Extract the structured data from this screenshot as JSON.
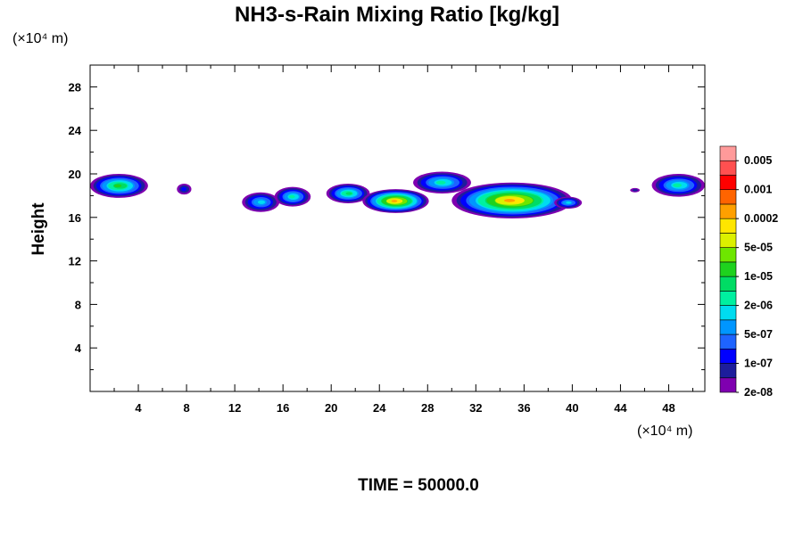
{
  "chart_data": {
    "type": "heatmap",
    "title": "NH3-s-Rain Mixing Ratio [kg/kg]",
    "ylabel": "Height",
    "xlabel": "",
    "x_unit": "(×10⁴ m)",
    "y_unit": "(×10⁴ m)",
    "time_label": "TIME = 50000.0",
    "xlim": [
      0,
      51
    ],
    "ylim": [
      0,
      30
    ],
    "x_ticks": [
      4,
      8,
      12,
      16,
      20,
      24,
      28,
      32,
      36,
      40,
      44,
      48
    ],
    "y_ticks": [
      4,
      8,
      12,
      16,
      20,
      24,
      28
    ],
    "colorbar": {
      "labels": [
        "0.005",
        "0.001",
        "0.0002",
        "5e-05",
        "1e-05",
        "2e-06",
        "5e-07",
        "1e-07",
        "2e-08"
      ],
      "colors": [
        "#7f00b0",
        "#1d1d9c",
        "#0000ff",
        "#1e64ff",
        "#0096ff",
        "#00dcf0",
        "#00f0a0",
        "#00dc64",
        "#1ed21e",
        "#6ee600",
        "#dcf000",
        "#ffe600",
        "#ffa000",
        "#ff6400",
        "#ff0000",
        "#ff5050",
        "#ff9a9a"
      ]
    },
    "cells": [
      {
        "x": [
          0,
          4.8
        ],
        "y": [
          17.8,
          20.0
        ],
        "peak": 8
      },
      {
        "x": [
          7.2,
          8.4
        ],
        "y": [
          18.1,
          19.1
        ],
        "peak": 2
      },
      {
        "x": [
          12.6,
          15.7
        ],
        "y": [
          16.5,
          18.3
        ],
        "peak": 5
      },
      {
        "x": [
          15.3,
          18.3
        ],
        "y": [
          17.0,
          18.8
        ],
        "peak": 6
      },
      {
        "x": [
          19.6,
          23.2
        ],
        "y": [
          17.3,
          19.1
        ],
        "peak": 7
      },
      {
        "x": [
          22.6,
          28.1
        ],
        "y": [
          16.4,
          18.6
        ],
        "peak": 12
      },
      {
        "x": [
          26.8,
          31.6
        ],
        "y": [
          18.2,
          20.2
        ],
        "peak": 6
      },
      {
        "x": [
          30.0,
          40.0
        ],
        "y": [
          15.9,
          19.2
        ],
        "peak": 12
      },
      {
        "x": [
          38.5,
          40.8
        ],
        "y": [
          16.8,
          17.9
        ],
        "peak": 5
      },
      {
        "x": [
          44.8,
          45.6
        ],
        "y": [
          18.3,
          18.7
        ],
        "peak": 1
      },
      {
        "x": [
          46.6,
          51.0
        ],
        "y": [
          17.9,
          20.0
        ],
        "peak": 6
      }
    ]
  }
}
